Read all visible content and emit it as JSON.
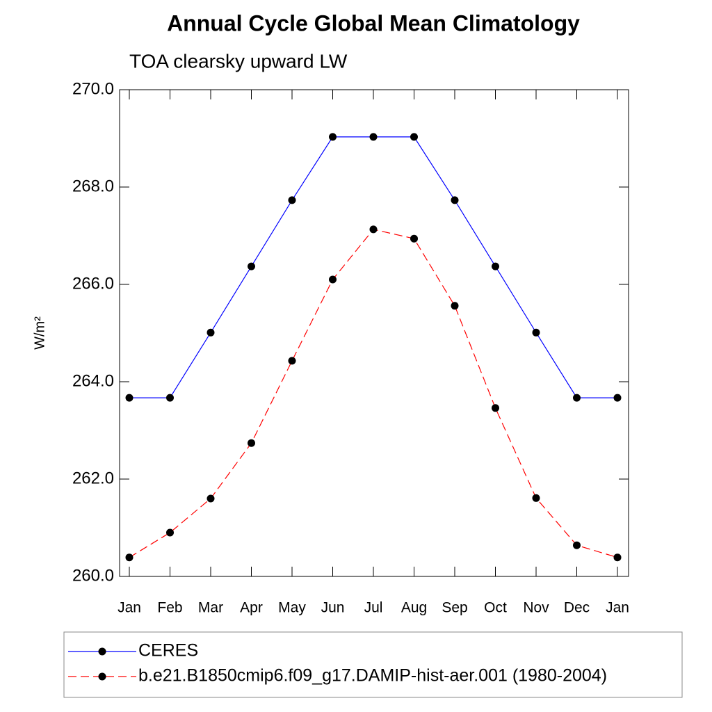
{
  "chart_data": {
    "type": "line",
    "title": "Annual Cycle Global Mean Climatology",
    "subtitle": "TOA clearsky upward LW",
    "y_label": "W/m²",
    "categories": [
      "Jan",
      "Feb",
      "Mar",
      "Apr",
      "May",
      "Jun",
      "Jul",
      "Aug",
      "Sep",
      "Oct",
      "Nov",
      "Dec",
      "Jan"
    ],
    "ylim": [
      260,
      270
    ],
    "yticks": [
      {
        "value": 260,
        "label": "260.0"
      },
      {
        "value": 262,
        "label": "262.0"
      },
      {
        "value": 264,
        "label": "264.0"
      },
      {
        "value": 266,
        "label": "266.0"
      },
      {
        "value": 268,
        "label": "268.0"
      },
      {
        "value": 270,
        "label": "270.0"
      }
    ],
    "legend": "bottom",
    "series": [
      {
        "name": "CERES",
        "color": "#0000ff",
        "dash": "solid",
        "values": [
          263.67,
          263.67,
          265.01,
          266.37,
          267.73,
          269.03,
          269.03,
          269.03,
          267.73,
          266.37,
          265.01,
          263.67,
          263.67
        ]
      },
      {
        "name": "b.e21.B1850cmip6.f09_g17.DAMIP-hist-aer.001 (1980-2004)",
        "color": "#ff0000",
        "dash": "dashed",
        "values": [
          260.39,
          260.9,
          261.6,
          262.74,
          264.43,
          266.1,
          267.13,
          266.94,
          265.56,
          263.46,
          261.61,
          260.64,
          260.39
        ]
      }
    ]
  }
}
